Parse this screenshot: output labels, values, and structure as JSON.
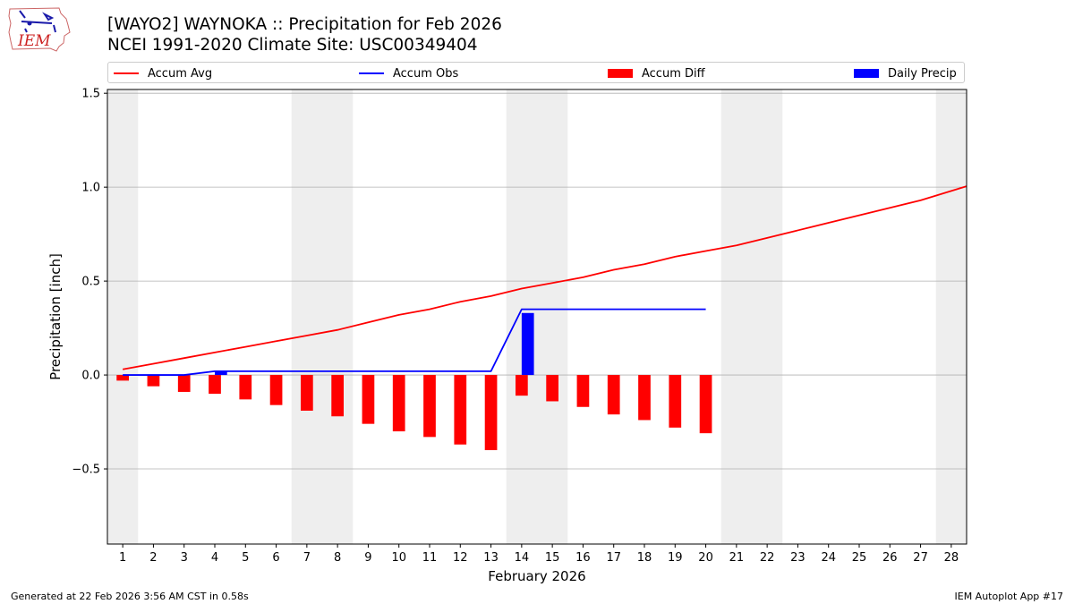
{
  "header": {
    "title": "[WAYO2] WAYNOKA :: Precipitation for Feb 2026",
    "subtitle": "NCEI 1991-2020 Climate Site: USC00349404",
    "logo_text": "IEM"
  },
  "footer": {
    "left": "Generated at 22 Feb 2026 3:56 AM CST in 0.58s",
    "right": "IEM Autoplot App #17"
  },
  "colors": {
    "avg": "#ff0000",
    "obs": "#0000ff",
    "diff": "#ff0000",
    "daily": "#0000ff",
    "weekend_shade": "#eeeeee",
    "grid": "#b0b0b0"
  },
  "chart_data": {
    "type": "bar",
    "xlabel": "February 2026",
    "ylabel": "Precipitation [inch]",
    "xlim": [
      0.5,
      28.5
    ],
    "ylim": [
      -0.9,
      1.52
    ],
    "yticks": [
      -0.5,
      0.0,
      0.5,
      1.0,
      1.5
    ],
    "ytick_labels": [
      "−0.5",
      "0.0",
      "0.5",
      "1.0",
      "1.5"
    ],
    "xticks": [
      1,
      2,
      3,
      4,
      5,
      6,
      7,
      8,
      9,
      10,
      11,
      12,
      13,
      14,
      15,
      16,
      17,
      18,
      19,
      20,
      21,
      22,
      23,
      24,
      25,
      26,
      27,
      28
    ],
    "grid": "y",
    "legend_position": "top",
    "shaded_weekend_days": [
      1,
      7,
      8,
      14,
      15,
      21,
      22,
      28
    ],
    "series": [
      {
        "name": "Accum Avg",
        "kind": "line",
        "x": [
          1,
          2,
          3,
          4,
          5,
          6,
          7,
          8,
          9,
          10,
          11,
          12,
          13,
          14,
          15,
          16,
          17,
          18,
          19,
          20,
          21,
          22,
          23,
          24,
          25,
          26,
          27,
          28,
          28.5
        ],
        "values": [
          0.03,
          0.06,
          0.09,
          0.12,
          0.15,
          0.18,
          0.21,
          0.24,
          0.28,
          0.32,
          0.35,
          0.39,
          0.42,
          0.46,
          0.49,
          0.52,
          0.56,
          0.59,
          0.63,
          0.66,
          0.69,
          0.73,
          0.77,
          0.81,
          0.85,
          0.89,
          0.93,
          0.98,
          1.005
        ]
      },
      {
        "name": "Accum Obs",
        "kind": "line",
        "x": [
          1,
          2,
          3,
          4,
          5,
          6,
          7,
          8,
          9,
          10,
          11,
          12,
          13,
          14,
          15,
          16,
          17,
          18,
          19,
          20
        ],
        "values": [
          0.0,
          0.0,
          0.0,
          0.02,
          0.02,
          0.02,
          0.02,
          0.02,
          0.02,
          0.02,
          0.02,
          0.02,
          0.02,
          0.35,
          0.35,
          0.35,
          0.35,
          0.35,
          0.35,
          0.35
        ]
      },
      {
        "name": "Accum Diff",
        "kind": "bar",
        "x": [
          1,
          2,
          3,
          4,
          5,
          6,
          7,
          8,
          9,
          10,
          11,
          12,
          13,
          14,
          15,
          16,
          17,
          18,
          19,
          20
        ],
        "values": [
          -0.03,
          -0.06,
          -0.09,
          -0.1,
          -0.13,
          -0.16,
          -0.19,
          -0.22,
          -0.26,
          -0.3,
          -0.33,
          -0.37,
          -0.4,
          -0.11,
          -0.14,
          -0.17,
          -0.21,
          -0.24,
          -0.28,
          -0.31
        ]
      },
      {
        "name": "Daily Precip",
        "kind": "bar",
        "x": [
          1,
          2,
          3,
          4,
          5,
          6,
          7,
          8,
          9,
          10,
          11,
          12,
          13,
          14,
          15,
          16,
          17,
          18,
          19,
          20
        ],
        "values": [
          0,
          0,
          0,
          0.02,
          0,
          0,
          0,
          0,
          0,
          0,
          0,
          0,
          0,
          0.33,
          0,
          0,
          0,
          0,
          0,
          0
        ]
      }
    ]
  }
}
